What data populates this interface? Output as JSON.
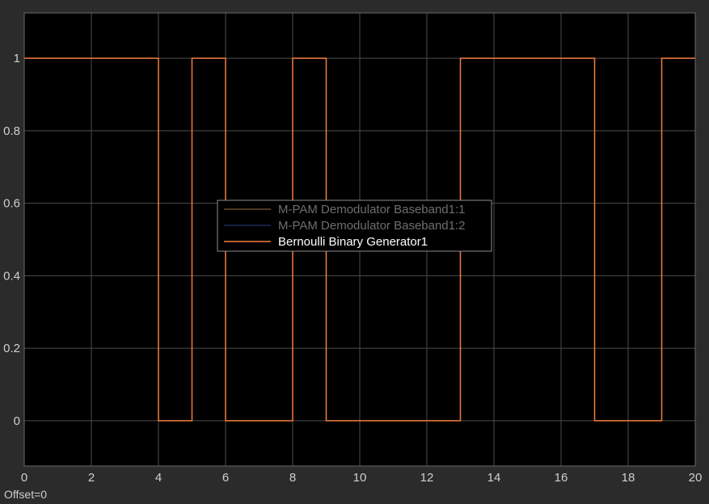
{
  "colors": {
    "figure_bg": "#2b2b2b",
    "axes_bg": "#000000",
    "grid": "#4d4d4d",
    "axis_text": "#cfcfcf",
    "legend_border": "#8c8c8c"
  },
  "status": {
    "offset": "Offset=0"
  },
  "chart_data": {
    "type": "line",
    "step": true,
    "xlim": [
      0,
      20
    ],
    "ylim": [
      -0.125,
      1.125
    ],
    "xticks": [
      0,
      2,
      4,
      6,
      8,
      10,
      12,
      14,
      16,
      18,
      20
    ],
    "yticks": [
      0,
      0.2,
      0.4,
      0.6,
      0.8,
      1
    ],
    "xtick_labels": [
      "0",
      "2",
      "4",
      "6",
      "8",
      "10",
      "12",
      "14",
      "16",
      "18",
      "20"
    ],
    "ytick_labels": [
      "0",
      "0.2",
      "0.4",
      "0.6",
      "0.8",
      "1"
    ],
    "grid": true,
    "legend_position": "center",
    "series": [
      {
        "name": "M-PAM Demodulator Baseband1:1",
        "color": "#6b4b2b",
        "legend_text_color": "#6e6e6e",
        "x": [],
        "y": []
      },
      {
        "name": "M-PAM Demodulator Baseband1:2",
        "color": "#1f2a5c",
        "legend_text_color": "#6e6e6e",
        "x": [],
        "y": []
      },
      {
        "name": "Bernoulli Binary Generator1",
        "color": "#f47c3c",
        "legend_text_color": "#ffffff",
        "x": [
          0,
          4,
          5,
          6,
          8,
          9,
          13,
          17,
          19,
          20
        ],
        "y": [
          1,
          0,
          1,
          0,
          1,
          0,
          1,
          0,
          1,
          1
        ]
      }
    ]
  }
}
